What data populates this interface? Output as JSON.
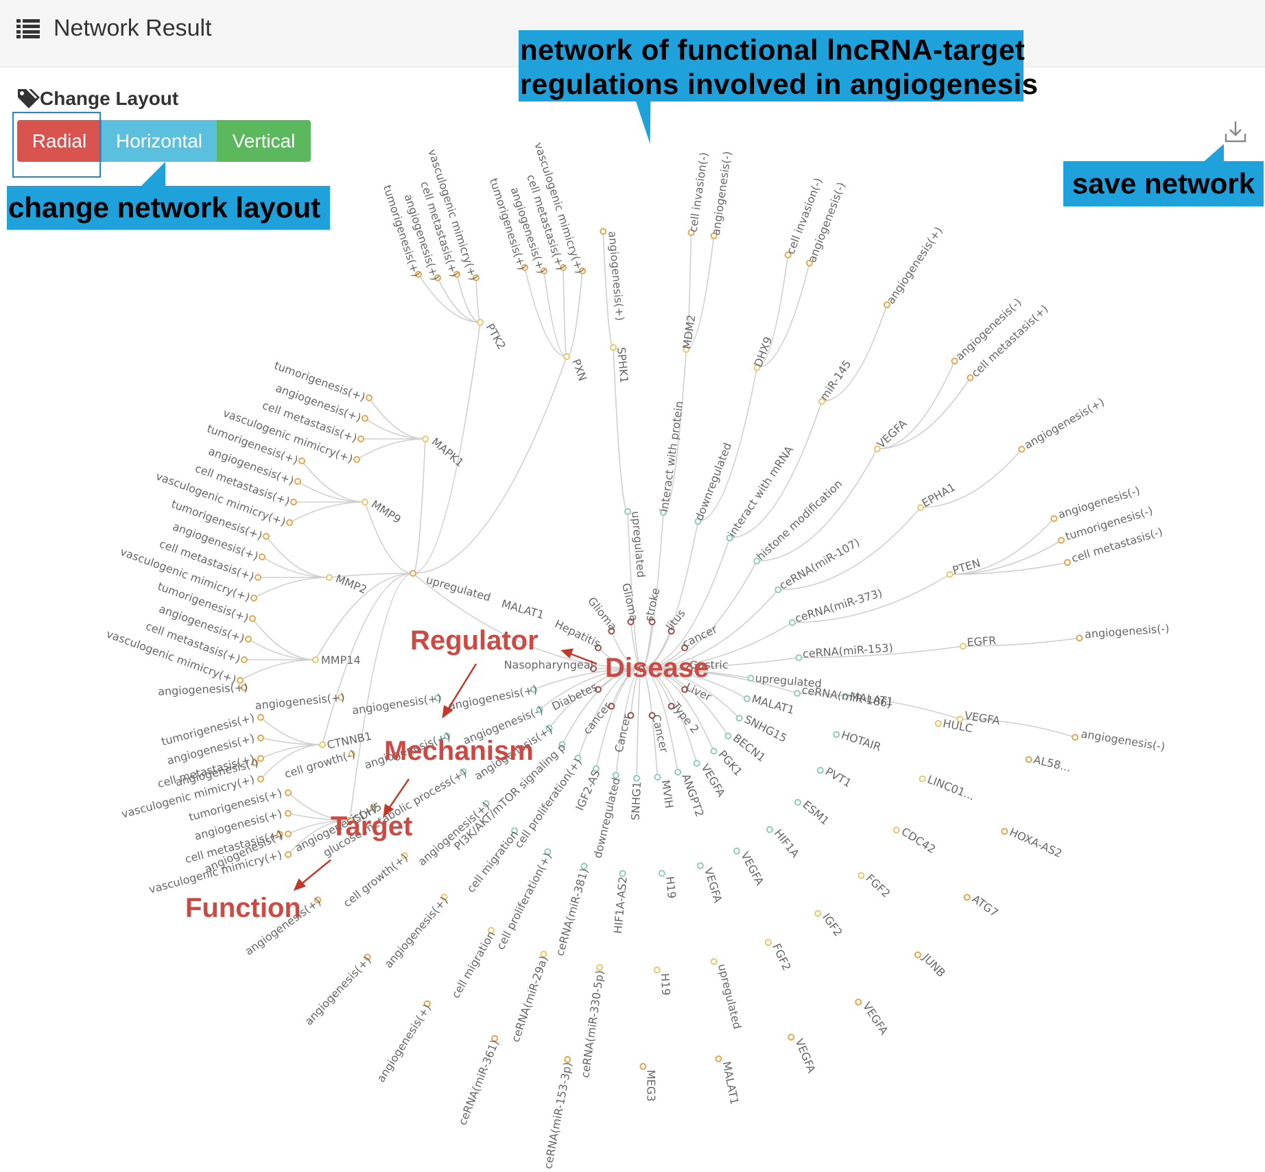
{
  "header": {
    "title": "Network Result",
    "icon": "list-icon"
  },
  "layout": {
    "label": "Change Layout",
    "label_icon": "tags-icon",
    "buttons": [
      "Radial",
      "Horizontal",
      "Vertical"
    ],
    "colors": {
      "radial": "#d9534f",
      "horizontal": "#5bc0de",
      "vertical": "#5cb85c"
    }
  },
  "callouts": {
    "title_line1": "network of functional lncRNA-target",
    "title_line2": "regulations involved in angiogenesis",
    "layout": "change network layout",
    "save": "save network",
    "color": "#1fa2dc"
  },
  "save_icon": "download-icon",
  "categories": {
    "regulator": "Regulator",
    "disease": "Disease",
    "mechanism": "Mechanism",
    "target": "Target",
    "function": "Function"
  },
  "network": {
    "center_cluster": [
      "Gastric",
      "Liver",
      "Type 2",
      "Cancer",
      "Cancer",
      "cancer",
      "Diabetes",
      "Nasopharyngeal",
      "Hepatitis",
      "Glioma",
      "Glioma",
      "stroke",
      "litus",
      "cancer"
    ],
    "targets": [
      {
        "name": "PTK2",
        "functions": [
          "tumorigenesis(+)",
          "angiogenesis(+)",
          "cell metastasis(+)",
          "vasculogenic mimicry(+)"
        ]
      },
      {
        "name": "PXN",
        "functions": [
          "tumorigenesis(+)",
          "angiogenesis(+)",
          "cell metastasis(+)",
          "vasculogenic mimicry(+)"
        ]
      },
      {
        "name": "MAPK1",
        "functions": [
          "tumorigenesis(+)",
          "angiogenesis(+)",
          "cell metastasis(+)",
          "vasculogenic mimicry(+)"
        ]
      },
      {
        "name": "MMP9",
        "functions": [
          "tumorigenesis(+)",
          "angiogenesis(+)",
          "cell metastasis(+)",
          "vasculogenic mimicry(+)"
        ]
      },
      {
        "name": "MMP2",
        "functions": [
          "tumorigenesis(+)",
          "angiogenesis(+)",
          "cell metastasis(+)",
          "vasculogenic mimicry(+)"
        ]
      },
      {
        "name": "MMP14",
        "functions": [
          "tumorigenesis(+)",
          "angiogenesis(+)",
          "cell metastasis(+)",
          "vasculogenic mimicry(+)"
        ]
      },
      {
        "name": "CTNNB1",
        "functions": [
          "tumorigenesis(+)",
          "angiogenesis(+)",
          "cell metastasis(+)",
          "vasculogenic mimicry(+)"
        ]
      },
      {
        "name": "CDH5",
        "functions": [
          "tumorigenesis(+)",
          "angiogenesis(+)",
          "cell metastasis(+)",
          "vasculogenic mimicry(+)"
        ]
      }
    ],
    "regulators": [
      {
        "text": "upregulated",
        "target": "SPHK1",
        "functions": [
          "angiogenesis(+)"
        ]
      },
      {
        "text": "interact with protein",
        "target": "MDM2",
        "functions": [
          "cell invasion(-)",
          "angiogenesis(-)"
        ]
      },
      {
        "text": "downregulated",
        "target": "DHX9",
        "functions": [
          "cell invasion(-)",
          "angiogenesis(-)"
        ]
      },
      {
        "text": "interact with mRNA",
        "target": "miR-145",
        "functions": [
          "angiogenesis(+)"
        ]
      },
      {
        "text": "histone modification",
        "target": "VEGFA",
        "functions": [
          "angiogenesis(-)",
          "cell metastasis(+)"
        ]
      },
      {
        "text": "ceRNA(miR-107)",
        "target": "EPHA1",
        "functions": [
          "angiogenesis(+)"
        ]
      },
      {
        "text": "ceRNA(miR-373)",
        "target": "PTEN",
        "functions": [
          "angiogenesis(-)",
          "tumorigenesis(-)",
          "cell metastasis(-)"
        ]
      },
      {
        "text": "ceRNA(miR-153)",
        "target": "EGFR",
        "functions": [
          "angiogenesis(-)"
        ]
      },
      {
        "text": "ceRNA(miR-186)",
        "target": "VEGFA",
        "functions": [
          "angiogenesis(-)"
        ]
      }
    ],
    "labels": [
      "upregulated",
      "MALAT1",
      "HULC",
      "AL58...",
      "MALAT1",
      "HOTAIR",
      "LINC01...",
      "HOXA-AS2",
      "SNHG15",
      "PVT1",
      "CDC42",
      "ATG7",
      "BECN1",
      "ESM1",
      "FGF2",
      "JUNB",
      "PGK1",
      "HIF1A",
      "IGF2",
      "VEGFA",
      "VEGFA",
      "VEGFA",
      "FGF2",
      "VEGFA",
      "ANGPT2",
      "VEGFA",
      "upregulated",
      "MALAT1",
      "MVIH",
      "H19",
      "H19",
      "MEG3",
      "SNHG1",
      "HIF1A-AS2",
      "ceRNA(miR-330-5p)",
      "ceRNA(miR-153-3p)",
      "downregulated",
      "ceRNA(miR-381)",
      "ceRNA(miR-29a)",
      "ceRNA(miR-361)",
      "IGF2-AS",
      "cell proliferation(+)",
      "cell migration",
      "angiogenesis(+)",
      "cell proliferation(+)",
      "cell migration",
      "angiogenesis(+)",
      "angiogenesis(+)",
      "PI3K/AKT/mTOR signaling p",
      "angiogenesis(+)",
      "cell growth(+)",
      "angiogenesis(+)",
      "angiogenesis(+)",
      "glucose metabolic process(+)",
      "angiogenesis(+)",
      "angiogenesis(-)",
      "angiogenesis(-)",
      "angiogenesis(+)",
      "cell growth(-)",
      "angiogenesis(-)",
      "angiogenesis(+)",
      "angiogenesis(+)",
      "angiogenesis(+)",
      "angiogenesis(+)"
    ]
  }
}
